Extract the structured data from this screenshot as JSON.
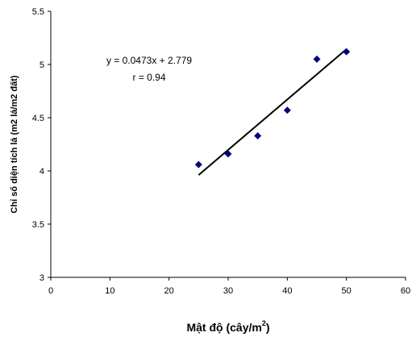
{
  "chart_data": {
    "type": "scatter",
    "title": "",
    "xlabel": "Mật độ (cây/m",
    "xlabel_sup": "2",
    "xlabel_close": ")",
    "ylabel": "Chỉ số diện tích lá (m2 lá/m2 đất)",
    "xlim": [
      0,
      60
    ],
    "ylim": [
      3,
      5.5
    ],
    "x_ticks": [
      0,
      10,
      20,
      30,
      40,
      50,
      60
    ],
    "y_ticks": [
      3,
      3.5,
      4,
      4.5,
      5,
      5.5
    ],
    "x_tick_labels": [
      "0",
      "10",
      "20",
      "30",
      "40",
      "50",
      "60"
    ],
    "y_tick_labels": [
      "3",
      "3.5",
      "4",
      "4.5",
      "5",
      "5.5"
    ],
    "grid": false,
    "series": [
      {
        "marker": "diamond",
        "color": "#000080",
        "x": [
          25,
          30,
          35,
          40,
          45,
          50
        ],
        "y": [
          4.06,
          4.16,
          4.33,
          4.57,
          5.05,
          5.12
        ]
      }
    ],
    "trendline": {
      "slope": 0.0473,
      "intercept": 2.779,
      "x_range": [
        25,
        50
      ],
      "color": "#000000"
    },
    "annotations": {
      "equation": "y = 0.0473x + 2.779",
      "r_value": "r = 0.94"
    }
  }
}
